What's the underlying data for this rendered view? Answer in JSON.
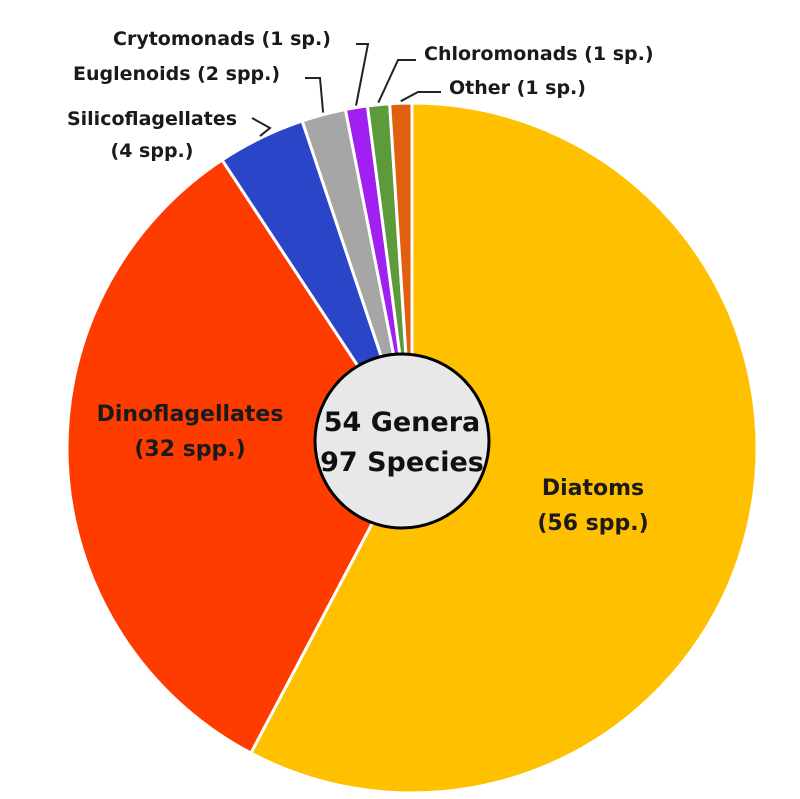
{
  "chart_data": {
    "type": "pie",
    "slices": [
      {
        "name": "Diatoms",
        "label": "Diatoms",
        "count_label": "(56 spp.)",
        "value": 56,
        "color": "#FFC000"
      },
      {
        "name": "Dinoflagellates",
        "label": "Dinoflagellates",
        "count_label": "(32 spp.)",
        "value": 32,
        "color": "#FF3C00"
      },
      {
        "name": "Silicoflagellates",
        "label": "Silicoflagellates",
        "count_label": "(4 spp.)",
        "value": 4,
        "color": "#2A45C8"
      },
      {
        "name": "Euglenoids",
        "label": "Euglenoids (2 spp.)",
        "count_label": "",
        "value": 2,
        "color": "#A6A6A6"
      },
      {
        "name": "Crytomonads",
        "label": "Crytomonads (1 sp.)",
        "count_label": "",
        "value": 1,
        "color": "#A020F0"
      },
      {
        "name": "Chloromonads",
        "label": "Chloromonads (1 sp.)",
        "count_label": "",
        "value": 1,
        "color": "#5C9A3C"
      },
      {
        "name": "Other",
        "label": "Other (1 sp.)",
        "count_label": "",
        "value": 1,
        "color": "#E06010"
      }
    ],
    "center_label": {
      "line1": "54 Genera",
      "line2": "97 Species"
    },
    "legend": "none"
  }
}
